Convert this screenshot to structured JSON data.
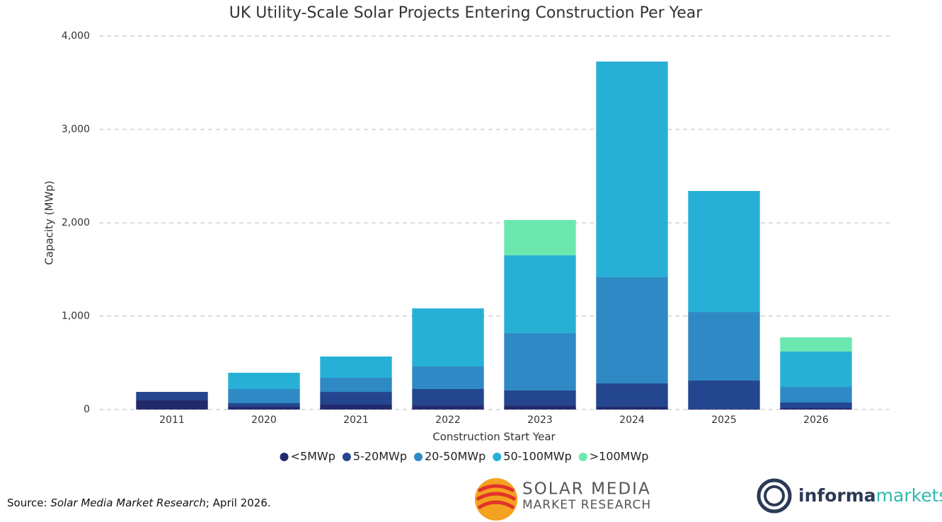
{
  "chart_data": {
    "type": "stacked-bar",
    "title": "UK Utility-Scale Solar Projects Entering Construction Per Year",
    "x_label": "Construction Start Year",
    "y_label": "Capacity (MWp)",
    "categories": [
      "2011",
      "2020",
      "2021",
      "2022",
      "2023",
      "2024",
      "2025",
      "2026"
    ],
    "series": [
      {
        "name": "<5MWp",
        "color": "#222a6e",
        "values": [
          105,
          30,
          53,
          45,
          45,
          30,
          8,
          15
        ]
      },
      {
        "name": "5-20MWp",
        "color": "#24468f",
        "values": [
          84,
          38,
          136,
          175,
          160,
          250,
          303,
          61
        ]
      },
      {
        "name": "20-50MWp",
        "color": "#2f89c4",
        "values": [
          0,
          152,
          152,
          242,
          613,
          1137,
          734,
          166
        ]
      },
      {
        "name": "50-100MWp",
        "color": "#27b0d6",
        "values": [
          0,
          174,
          227,
          621,
          834,
          2310,
          1296,
          379
        ]
      },
      {
        "name": ">100MWp",
        "color": "#6be8b0",
        "values": [
          0,
          0,
          0,
          0,
          378,
          0,
          0,
          152
        ]
      }
    ],
    "ylim": [
      0,
      4000
    ],
    "yticks": [
      0,
      {
        "value": 1000,
        "label": "1,000"
      },
      {
        "value": 2000,
        "label": "2,000"
      },
      {
        "value": 3000,
        "label": "3,000"
      },
      {
        "value": 4000,
        "label": "4,000"
      }
    ],
    "grid": true,
    "legend": "bottom"
  },
  "footer": {
    "source_prefix": "Source: ",
    "source_title": "Solar Media Market Research",
    "source_suffix": "; April 2026.",
    "logo1_line1": "SOLAR MEDIA",
    "logo1_line2": "MARKET RESEARCH",
    "logo2_part1": "informa",
    "logo2_part2": "markets"
  }
}
